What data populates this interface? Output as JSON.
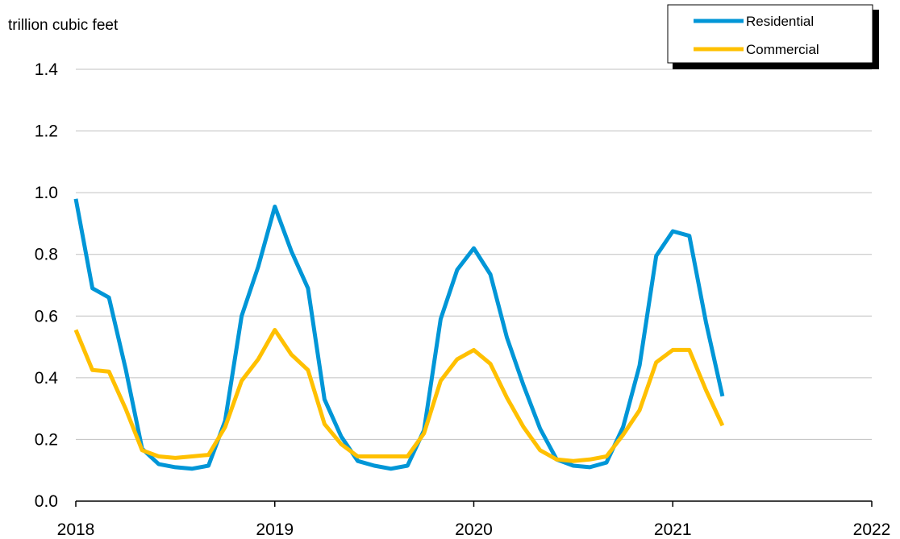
{
  "chart_data": {
    "type": "line",
    "title": "",
    "ylabel": "trillion cubic feet",
    "xlabel": "",
    "ylim": [
      0,
      1.4
    ],
    "xlim": [
      2018,
      2022
    ],
    "y_ticks": [
      "0.0",
      "0.2",
      "0.4",
      "0.6",
      "0.8",
      "1.0",
      "1.2",
      "1.4"
    ],
    "x_ticks": [
      "2018",
      "2019",
      "2020",
      "2021",
      "2022"
    ],
    "grid": "horizontal",
    "legend_position": "top-right",
    "x": [
      "2018-01",
      "2018-02",
      "2018-03",
      "2018-04",
      "2018-05",
      "2018-06",
      "2018-07",
      "2018-08",
      "2018-09",
      "2018-10",
      "2018-11",
      "2018-12",
      "2019-01",
      "2019-02",
      "2019-03",
      "2019-04",
      "2019-05",
      "2019-06",
      "2019-07",
      "2019-08",
      "2019-09",
      "2019-10",
      "2019-11",
      "2019-12",
      "2020-01",
      "2020-02",
      "2020-03",
      "2020-04",
      "2020-05",
      "2020-06",
      "2020-07",
      "2020-08",
      "2020-09",
      "2020-10",
      "2020-11",
      "2020-12",
      "2021-01",
      "2021-02",
      "2021-03",
      "2021-04"
    ],
    "series": [
      {
        "name": "Residential",
        "color": "#0096D7",
        "values": [
          0.98,
          0.69,
          0.66,
          0.43,
          0.17,
          0.12,
          0.11,
          0.105,
          0.115,
          0.26,
          0.6,
          0.76,
          0.955,
          0.81,
          0.69,
          0.33,
          0.21,
          0.13,
          0.115,
          0.105,
          0.115,
          0.23,
          0.59,
          0.75,
          0.82,
          0.735,
          0.53,
          0.375,
          0.235,
          0.135,
          0.115,
          0.11,
          0.125,
          0.24,
          0.44,
          0.795,
          0.875,
          0.86,
          0.58,
          0.34
        ]
      },
      {
        "name": "Commercial",
        "color": "#FFC000",
        "values": [
          0.555,
          0.425,
          0.42,
          0.3,
          0.165,
          0.145,
          0.14,
          0.145,
          0.15,
          0.24,
          0.39,
          0.46,
          0.555,
          0.475,
          0.425,
          0.25,
          0.185,
          0.145,
          0.145,
          0.145,
          0.145,
          0.22,
          0.39,
          0.46,
          0.49,
          0.445,
          0.335,
          0.24,
          0.165,
          0.135,
          0.13,
          0.135,
          0.145,
          0.215,
          0.295,
          0.45,
          0.49,
          0.49,
          0.36,
          0.245
        ]
      }
    ]
  }
}
